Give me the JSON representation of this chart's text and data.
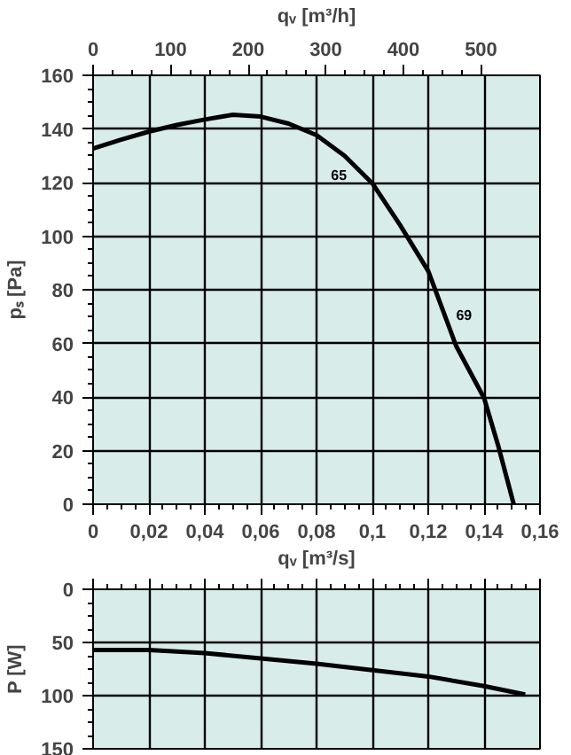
{
  "chart_data": [
    {
      "type": "line",
      "color": "#000000",
      "x": [
        0,
        0.01,
        0.02,
        0.03,
        0.04,
        0.05,
        0.06,
        0.07,
        0.08,
        0.09,
        0.1,
        0.11,
        0.12,
        0.13,
        0.14,
        0.145,
        0.1506
      ],
      "values": [
        132.7,
        136,
        139,
        141.5,
        143.5,
        145.3,
        144.6,
        142,
        137.7,
        130,
        119.7,
        104,
        87,
        59,
        39.6,
        22,
        0
      ],
      "xlim": [
        0,
        0.16
      ],
      "xticks": [
        0,
        {
          "value": 0.02,
          "label": "0,02"
        },
        {
          "value": 0.04,
          "label": "0,04"
        },
        {
          "value": 0.06,
          "label": "0,06"
        },
        {
          "value": 0.08,
          "label": "0,08"
        },
        {
          "value": 0.1,
          "label": "0,1"
        },
        {
          "value": 0.12,
          "label": "0,12"
        },
        {
          "value": 0.14,
          "label": "0,14"
        },
        {
          "value": 0.16,
          "label": "0,16"
        }
      ],
      "ylim": [
        0,
        160
      ],
      "yticks": [
        0,
        20,
        40,
        60,
        80,
        100,
        120,
        140,
        160
      ],
      "ylabel": "pₛ [Pa]",
      "x2lim": [
        0,
        576
      ],
      "x2ticks": [
        0,
        100,
        200,
        300,
        400,
        500
      ],
      "x2label": "qᵥ [m³/h]",
      "grid": true,
      "annotations": [
        "65",
        "69"
      ]
    },
    {
      "type": "line",
      "color": "#000000",
      "x": [
        0,
        0.02,
        0.04,
        0.06,
        0.08,
        0.1,
        0.12,
        0.14,
        0.1547
      ],
      "values": [
        57,
        57,
        60,
        65,
        70,
        76,
        82,
        91,
        99
      ],
      "xlim": [
        0,
        0.16
      ],
      "xticks": [
        0,
        0.02,
        0.04,
        0.06,
        0.08,
        0.1,
        0.12,
        0.14,
        0.16
      ],
      "xlabel": "qᵥ [m³/s]",
      "ylim": [
        150,
        0
      ],
      "yticks": [
        0,
        50,
        100,
        150
      ],
      "ylabel": "P [W]",
      "grid": true,
      "tick_labels": "y"
    }
  ]
}
